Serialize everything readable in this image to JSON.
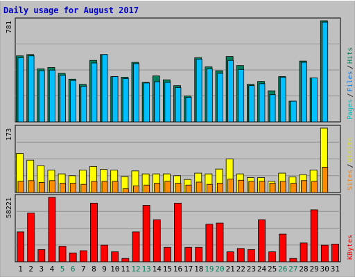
{
  "chart_data": [
    {
      "type": "bar",
      "title": "Daily usage for August 2017",
      "ymax_label": "781",
      "ylim": [
        0,
        781
      ],
      "axis_label": [
        "Pages",
        "Files",
        "Hits"
      ],
      "axis_label_sep": "/",
      "categories": [
        "1",
        "2",
        "3",
        "4",
        "5",
        "6",
        "7",
        "8",
        "9",
        "10",
        "11",
        "12",
        "13",
        "14",
        "15",
        "16",
        "17",
        "18",
        "19",
        "20",
        "21",
        "22",
        "23",
        "24",
        "25",
        "26",
        "27",
        "28",
        "29",
        "30",
        "31"
      ],
      "weekend_days": [
        "5",
        "6",
        "12",
        "13",
        "19",
        "20",
        "26",
        "27"
      ],
      "series": [
        {
          "name": "Hits",
          "color": "#00805c",
          "values": [
            510,
            520,
            410,
            420,
            375,
            330,
            290,
            475,
            520,
            350,
            345,
            460,
            305,
            355,
            325,
            280,
            200,
            496,
            425,
            395,
            505,
            435,
            290,
            312,
            240,
            350,
            160,
            470,
            340,
            781,
            0
          ]
        },
        {
          "name": "Files",
          "color": "#00bfff",
          "values": [
            495,
            510,
            395,
            400,
            360,
            320,
            275,
            455,
            520,
            350,
            335,
            450,
            300,
            310,
            305,
            265,
            190,
            485,
            410,
            375,
            475,
            405,
            280,
            295,
            210,
            345,
            160,
            460,
            340,
            770,
            0
          ]
        }
      ]
    },
    {
      "type": "bar",
      "ymax_label": "173",
      "ylim": [
        0,
        173
      ],
      "axis_label": [
        "Sites",
        "Visits"
      ],
      "axis_label_sep": "/",
      "series": [
        {
          "name": "Visits",
          "color": "#ffff00",
          "values": [
            105,
            87,
            72,
            60,
            50,
            45,
            60,
            70,
            62,
            60,
            43,
            58,
            50,
            50,
            50,
            45,
            35,
            52,
            50,
            63,
            90,
            50,
            40,
            40,
            30,
            52,
            42,
            48,
            60,
            173,
            0
          ]
        },
        {
          "name": "Sites",
          "color": "#ff8c00",
          "values": [
            30,
            32,
            27,
            32,
            25,
            25,
            22,
            30,
            30,
            30,
            10,
            18,
            20,
            25,
            30,
            25,
            20,
            28,
            22,
            25,
            36,
            33,
            30,
            30,
            25,
            30,
            25,
            32,
            30,
            68,
            0
          ]
        }
      ]
    },
    {
      "type": "bar",
      "ymax_label": "58221",
      "ylim": [
        0,
        58221
      ],
      "axis_label": [
        "KBytes"
      ],
      "series": [
        {
          "name": "KBytes",
          "color": "#ff0000",
          "values": [
            27000,
            44000,
            11000,
            58221,
            14000,
            8000,
            10000,
            53000,
            15000,
            9000,
            3000,
            27000,
            51000,
            38000,
            13000,
            53000,
            13000,
            13000,
            34000,
            35000,
            9000,
            12000,
            11000,
            38000,
            9000,
            25000,
            3000,
            17000,
            47000,
            15000,
            16000
          ]
        }
      ]
    }
  ]
}
